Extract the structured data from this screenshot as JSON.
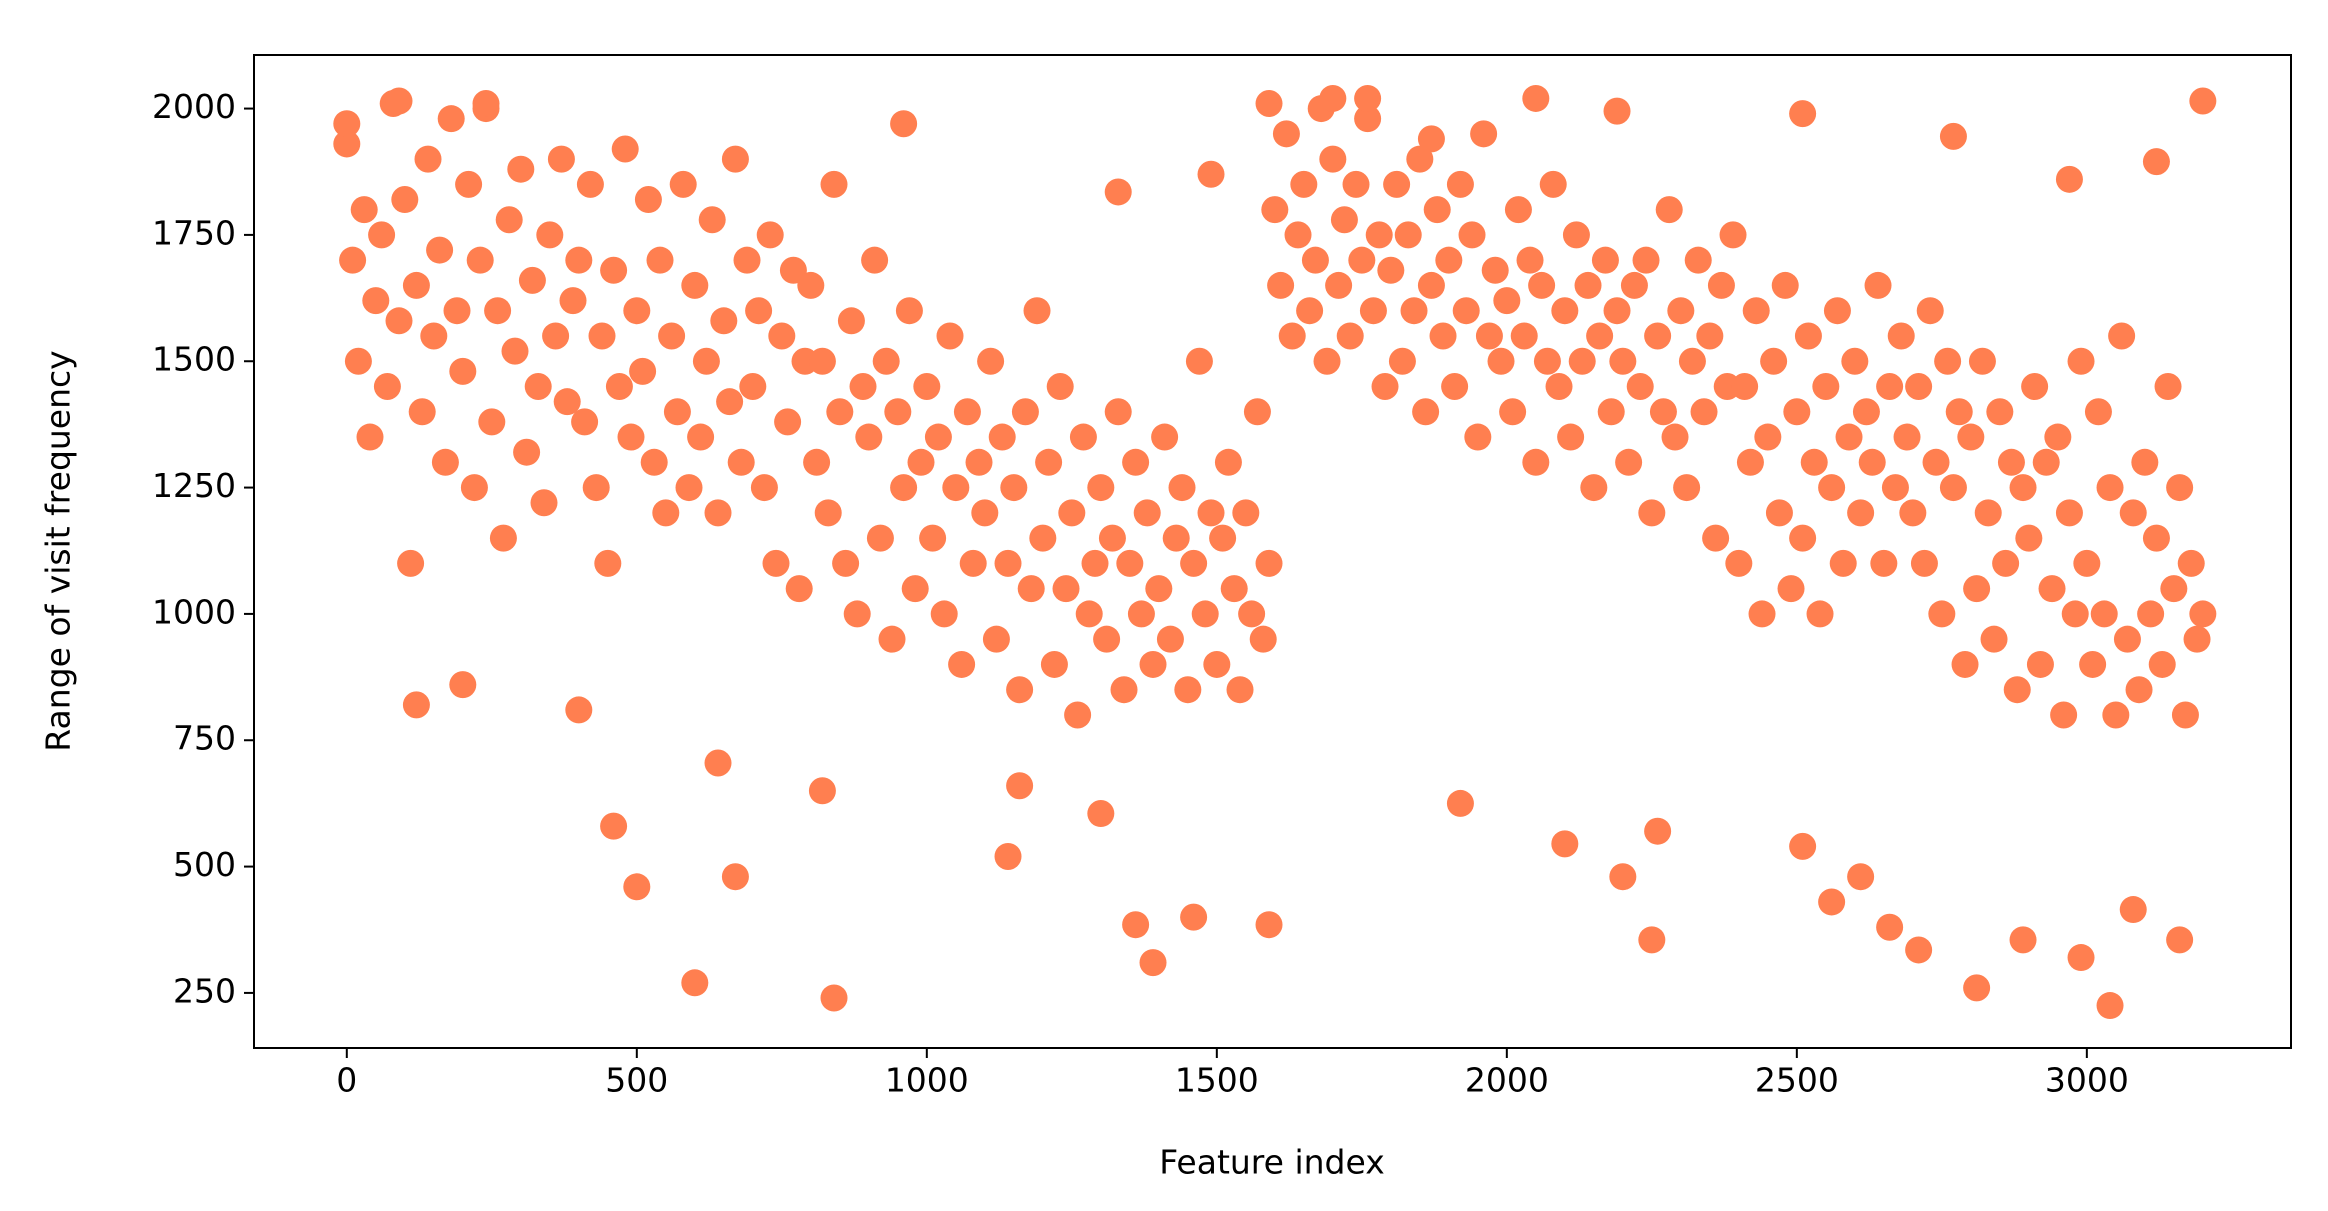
{
  "chart_data": {
    "type": "scatter",
    "color": "#ff7f50",
    "xlabel": "Feature index",
    "ylabel": "Range of visit frequency",
    "xlim": [
      -160,
      3352
    ],
    "ylim": [
      141,
      2106
    ],
    "xticks": [
      0,
      500,
      1000,
      1500,
      2000,
      2500,
      3000
    ],
    "yticks": [
      250,
      500,
      750,
      1000,
      1250,
      1500,
      1750,
      2000
    ],
    "grid": false,
    "x": [
      0,
      10,
      20,
      30,
      40,
      50,
      60,
      70,
      80,
      90,
      100,
      110,
      120,
      130,
      140,
      150,
      160,
      170,
      180,
      190,
      200,
      210,
      220,
      230,
      240,
      250,
      260,
      270,
      280,
      290,
      300,
      310,
      320,
      330,
      340,
      350,
      360,
      370,
      380,
      390,
      400,
      410,
      420,
      430,
      440,
      450,
      460,
      470,
      480,
      490,
      500,
      510,
      520,
      530,
      540,
      550,
      560,
      570,
      580,
      590,
      600,
      610,
      620,
      630,
      640,
      650,
      660,
      670,
      680,
      690,
      700,
      710,
      720,
      730,
      740,
      750,
      760,
      770,
      780,
      790,
      800,
      810,
      820,
      830,
      840,
      850,
      860,
      870,
      880,
      890,
      900,
      910,
      920,
      930,
      940,
      950,
      960,
      970,
      980,
      990,
      1000,
      1010,
      1020,
      1030,
      1040,
      1050,
      1060,
      1070,
      1080,
      1090,
      1100,
      1110,
      1120,
      1130,
      1140,
      1150,
      1160,
      1170,
      1180,
      1190,
      1200,
      1210,
      1220,
      1230,
      1240,
      1250,
      1260,
      1270,
      1280,
      1290,
      1300,
      1310,
      1320,
      1330,
      1340,
      1350,
      1360,
      1370,
      1380,
      1390,
      1400,
      1410,
      1420,
      1430,
      1440,
      1450,
      1460,
      1470,
      1480,
      1490,
      1500,
      1510,
      1520,
      1530,
      1540,
      1550,
      1560,
      1570,
      1580,
      1590,
      1600,
      1610,
      1620,
      1630,
      1640,
      1650,
      1660,
      1670,
      1680,
      1690,
      1700,
      1710,
      1720,
      1730,
      1740,
      1750,
      1760,
      1770,
      1780,
      1790,
      1800,
      1810,
      1820,
      1830,
      1840,
      1850,
      1860,
      1870,
      1880,
      1890,
      1900,
      1910,
      1920,
      1930,
      1940,
      1950,
      1960,
      1970,
      1980,
      1990,
      2000,
      2010,
      2020,
      2030,
      2040,
      2050,
      2060,
      2070,
      2080,
      2090,
      2100,
      2110,
      2120,
      2130,
      2140,
      2150,
      2160,
      2170,
      2180,
      2190,
      2200,
      2210,
      2220,
      2230,
      2240,
      2250,
      2260,
      2270,
      2280,
      2290,
      2300,
      2310,
      2320,
      2330,
      2340,
      2350,
      2360,
      2370,
      2380,
      2390,
      2400,
      2410,
      2420,
      2430,
      2440,
      2450,
      2460,
      2470,
      2480,
      2490,
      2500,
      2510,
      2520,
      2530,
      2540,
      2550,
      2560,
      2570,
      2580,
      2590,
      2600,
      2610,
      2620,
      2630,
      2640,
      2650,
      2660,
      2670,
      2680,
      2690,
      2700,
      2710,
      2720,
      2730,
      2740,
      2750,
      2760,
      2770,
      2780,
      2790,
      2800,
      2810,
      2820,
      2830,
      2840,
      2850,
      2860,
      2870,
      2880,
      2890,
      2900,
      2910,
      2920,
      2930,
      2940,
      2950,
      2960,
      2970,
      2980,
      2990,
      3000,
      3010,
      3020,
      3030,
      3040,
      3050,
      3060,
      3070,
      3080,
      3090,
      3100,
      3110,
      3120,
      3130,
      3140,
      3150,
      3160,
      3170,
      3180,
      3190,
      3200,
      120,
      200,
      460,
      500,
      600,
      640,
      670,
      840,
      1140,
      1300,
      1360,
      1390,
      1460,
      1590,
      1590,
      1700,
      1760,
      1920,
      2100,
      2200,
      2250,
      2660,
      2710,
      2810,
      2890,
      2990,
      3040,
      3080,
      3160,
      3200,
      2050,
      2190,
      2510,
      2770,
      1870,
      0,
      90,
      240,
      960,
      1330,
      1490,
      2970,
      3120,
      2260,
      2510,
      2560,
      2610,
      1160,
      820,
      400
    ],
    "values": [
      1930,
      1700,
      1500,
      1800,
      1350,
      1620,
      1750,
      1450,
      2010,
      1580,
      1820,
      1100,
      1650,
      1400,
      1900,
      1550,
      1720,
      1300,
      1980,
      1600,
      1480,
      1850,
      1250,
      1700,
      2000,
      1380,
      1600,
      1150,
      1780,
      1520,
      1880,
      1320,
      1660,
      1450,
      1220,
      1750,
      1550,
      1900,
      1420,
      1620,
      1700,
      1380,
      1850,
      1250,
      1550,
      1100,
      1680,
      1450,
      1920,
      1350,
      1600,
      1480,
      1820,
      1300,
      1700,
      1200,
      1550,
      1400,
      1850,
      1250,
      1650,
      1350,
      1500,
      1780,
      1200,
      1580,
      1420,
      1900,
      1300,
      1700,
      1450,
      1600,
      1250,
      1750,
      1100,
      1550,
      1380,
      1680,
      1050,
      1500,
      1650,
      1300,
      1500,
      1200,
      1850,
      1400,
      1100,
      1580,
      1000,
      1450,
      1350,
      1700,
      1150,
      1500,
      950,
      1400,
      1250,
      1600,
      1050,
      1300,
      1450,
      1150,
      1350,
      1000,
      1550,
      1250,
      900,
      1400,
      1100,
      1300,
      1200,
      1500,
      950,
      1350,
      1100,
      1250,
      850,
      1400,
      1050,
      1600,
      1150,
      1300,
      900,
      1450,
      1050,
      1200,
      800,
      1350,
      1000,
      1100,
      1250,
      950,
      1150,
      1400,
      850,
      1100,
      1300,
      1000,
      1200,
      900,
      1050,
      1350,
      950,
      1150,
      1250,
      850,
      1100,
      1500,
      1000,
      1200,
      900,
      1150,
      1300,
      1050,
      850,
      1200,
      1000,
      1400,
      950,
      1100,
      1800,
      1650,
      1950,
      1550,
      1750,
      1850,
      1600,
      1700,
      2000,
      1500,
      1900,
      1650,
      1780,
      1550,
      1850,
      1700,
      1980,
      1600,
      1750,
      1450,
      1680,
      1850,
      1500,
      1750,
      1600,
      1900,
      1400,
      1650,
      1800,
      1550,
      1700,
      1450,
      1850,
      1600,
      1750,
      1350,
      1950,
      1550,
      1680,
      1500,
      1620,
      1400,
      1800,
      1550,
      1700,
      1300,
      1650,
      1500,
      1850,
      1450,
      1600,
      1350,
      1750,
      1500,
      1650,
      1250,
      1550,
      1700,
      1400,
      1600,
      1500,
      1300,
      1650,
      1450,
      1700,
      1200,
      1550,
      1400,
      1800,
      1350,
      1600,
      1250,
      1500,
      1700,
      1400,
      1550,
      1150,
      1650,
      1450,
      1750,
      1100,
      1450,
      1300,
      1600,
      1000,
      1350,
      1500,
      1200,
      1650,
      1050,
      1400,
      1150,
      1550,
      1300,
      1000,
      1450,
      1250,
      1600,
      1100,
      1350,
      1500,
      1200,
      1400,
      1300,
      1650,
      1100,
      1450,
      1250,
      1550,
      1350,
      1200,
      1450,
      1100,
      1600,
      1300,
      1000,
      1500,
      1250,
      1400,
      900,
      1350,
      1050,
      1500,
      1200,
      950,
      1400,
      1100,
      1300,
      850,
      1250,
      1150,
      1450,
      900,
      1300,
      1050,
      1350,
      800,
      1200,
      1000,
      1500,
      1100,
      900,
      1400,
      1000,
      1250,
      800,
      1550,
      950,
      1200,
      850,
      1300,
      1000,
      1150,
      900,
      1450,
      1050,
      1250,
      800,
      1100,
      950,
      1000,
      820,
      860,
      580,
      460,
      270,
      705,
      480,
      240,
      520,
      605,
      385,
      310,
      400,
      385,
      2010,
      2020,
      2020,
      625,
      545,
      480,
      355,
      380,
      335,
      260,
      355,
      320,
      225,
      415,
      355,
      2015,
      2020,
      1995,
      1990,
      1945,
      1940,
      1970,
      2015,
      2010,
      1970,
      1835,
      1870,
      1860,
      1895,
      570,
      540,
      430,
      480,
      660,
      650,
      810
    ]
  }
}
